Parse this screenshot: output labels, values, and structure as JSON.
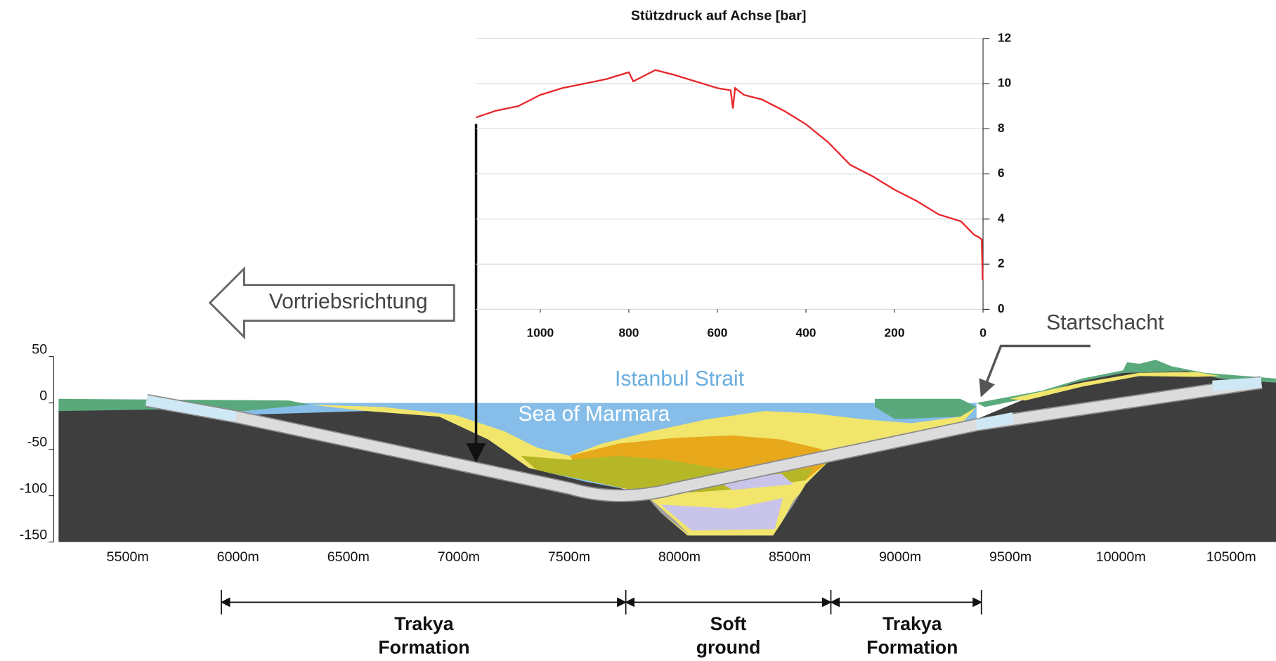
{
  "chart_data": [
    {
      "type": "line",
      "title": "Stützdruck auf Achse [bar]",
      "color": "#e8262a",
      "x": [
        1145,
        1100,
        1050,
        1000,
        950,
        900,
        850,
        800,
        790,
        770,
        740,
        700,
        650,
        600,
        570,
        565,
        560,
        540,
        500,
        450,
        400,
        350,
        300,
        250,
        200,
        150,
        100,
        50,
        20,
        10,
        3,
        1
      ],
      "values": [
        8.5,
        8.8,
        9.0,
        9.5,
        9.8,
        10.0,
        10.2,
        10.5,
        10.1,
        10.3,
        10.6,
        10.4,
        10.1,
        9.8,
        9.7,
        8.9,
        9.8,
        9.5,
        9.3,
        8.8,
        8.2,
        7.4,
        6.4,
        5.9,
        5.3,
        4.8,
        4.2,
        3.9,
        3.3,
        3.2,
        3.1,
        1.3
      ],
      "xlim": [
        1145,
        0
      ],
      "ylim": [
        0,
        12
      ],
      "xticks": [
        1000,
        800,
        600,
        400,
        200,
        0
      ],
      "yticks": [
        0,
        2,
        4,
        6,
        8,
        10,
        12
      ],
      "grid": true
    },
    {
      "type": "section",
      "xlim": [
        5187,
        10703
      ],
      "ylim": [
        -150,
        50
      ],
      "xticks": [
        {
          "value": 5500,
          "label": "5500m"
        },
        {
          "value": 6000,
          "label": "6000m"
        },
        {
          "value": 6500,
          "label": "6500m"
        },
        {
          "value": 7000,
          "label": "7000m"
        },
        {
          "value": 7500,
          "label": "7500m"
        },
        {
          "value": 8000,
          "label": "8000m"
        },
        {
          "value": 8500,
          "label": "8500m"
        },
        {
          "value": 9000,
          "label": "9000m"
        },
        {
          "value": 9500,
          "label": "9500m"
        },
        {
          "value": 10000,
          "label": "10000m"
        },
        {
          "value": 10500,
          "label": "10500m"
        }
      ],
      "yticks": [
        -150,
        -100,
        -50,
        0,
        50
      ],
      "annotations": [
        "Istanbul Strait",
        "Sea of Marmara",
        "Vortriebsrichtung",
        "Startschacht"
      ],
      "formations": [
        [
          "Trakya",
          "Formation"
        ],
        [
          "Soft",
          "ground"
        ],
        [
          "Trakya",
          "Formation"
        ]
      ]
    }
  ]
}
